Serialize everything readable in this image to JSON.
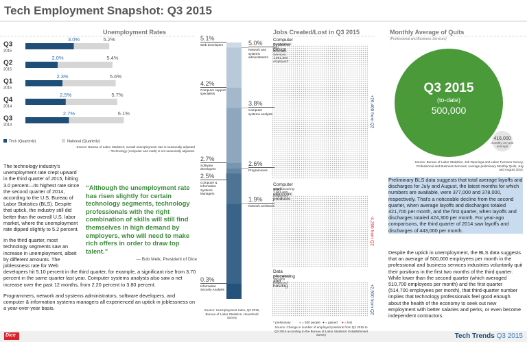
{
  "header": {
    "title": "Tech Employment Snapshot: Q3 2015"
  },
  "unemployment": {
    "title": "Unemployment Rates",
    "tech_color": "#1f4e79",
    "national_color": "#d6d6d6",
    "rows": [
      {
        "quarter": "Q3",
        "year": "2015",
        "tech": {
          "value": 3.0,
          "label": "3.0%"
        },
        "national": {
          "value": 5.2,
          "label": "5.2%"
        }
      },
      {
        "quarter": "Q2",
        "year": "2015",
        "tech": {
          "value": 2.0,
          "label": "2.0%"
        },
        "national": {
          "value": 5.4,
          "label": "5.4%"
        }
      },
      {
        "quarter": "Q1",
        "year": "2015",
        "tech": {
          "value": 2.3,
          "label": "2.3%"
        },
        "national": {
          "value": 5.6,
          "label": "5.6%"
        }
      },
      {
        "quarter": "Q4",
        "year": "2014",
        "tech": {
          "value": 2.5,
          "label": "2.5%"
        },
        "national": {
          "value": 5.7,
          "label": "5.7%"
        }
      },
      {
        "quarter": "Q3",
        "year": "2014",
        "tech": {
          "value": 2.7,
          "label": "2.7%"
        },
        "national": {
          "value": 6.1,
          "label": "6.1%"
        }
      }
    ],
    "legend": [
      "Tech (Quarterly)",
      "National (Quarterly)"
    ],
    "source": "Source: Bureau of Labor Statistics; overall unemployment rate is seasonally adjusted – Technology (computer and math) is not seasonally adjusted."
  },
  "body": {
    "paragraphs": [
      "The technology industry's unemployment rate crept upward in the third quarter of 2015, hitting 3.0 percent—its highest rate since the second quarter of 2014, according to the U.S. Bureau of Labor Statistics (BLS). Despite that uptick, the industry still did better than the overall U.S. labor market, where the unemployment rate dipped slightly to 5.2 percent.",
      "In the third quarter, most technology segments saw an increase in unemployment, albeit by different amounts. The joblessness rate for Web developers hit 5.10 percent in the third quarter, for example, a significant rise from 3.70 percent in the same quarter last year. Computer systems analysts also saw a net increase over the past 12 months, from 2.20 percent to 3.80 percent.",
      "Programmers, network and systems administrators, software developers, and computer & information systems managers all experienced an uptick in joblessness on a year-over-year basis."
    ],
    "quote": "“Although the unemployment rate has risen slightly for certain technology segments, technology professionals with the right combination of skills will still find themselves in high demand by employers, who will need to make rich offers in order to draw top talent.”",
    "attribution": "— Bob Melk, President of Dice"
  },
  "occupations": {
    "items": [
      {
        "name": "Web developers",
        "rate": {
          "value": 5.1,
          "label": "5.1%"
        }
      },
      {
        "name": "Network and systems administrators",
        "rate": {
          "value": 5.0,
          "label": "5.0%"
        }
      },
      {
        "name": "Computer support specialists",
        "rate": {
          "value": 4.2,
          "label": "4.2%"
        }
      },
      {
        "name": "Computer systems analysts",
        "rate": {
          "value": 3.8,
          "label": "3.8%"
        }
      },
      {
        "name": "Software developers",
        "rate": {
          "value": 2.7,
          "label": "2.7%"
        }
      },
      {
        "name": "Programmers",
        "rate": {
          "value": 2.6,
          "label": "2.6%"
        }
      },
      {
        "name": "Computer & Information Systems Managers",
        "rate": {
          "value": 2.5,
          "label": "2.5%"
        }
      },
      {
        "name": "Network architects",
        "rate": {
          "value": 1.9,
          "label": "1.9%"
        }
      },
      {
        "name": "Information Security Analysts",
        "rate": {
          "value": 0.3,
          "label": "0.3%"
        }
      }
    ],
    "source": "Source: Unemployment rates, Q3 2015, Bureau of Labor Statistics, Household Survey"
  },
  "jobs": {
    "title": "Jobs Created/Lost in Q3 2015",
    "panels": [
      {
        "name": "Computer systems design",
        "sector": "Professional and Business Services: 1,891,800 employed*",
        "change": "+26,400 from Q2"
      },
      {
        "name": "Computer and electronic products",
        "sector": "Manufacturing: 1,051,500 employed*",
        "change": "-4,200 from Q2"
      },
      {
        "name": "Data processing and hosting",
        "sector": "Information: 300,000 employed*",
        "change": "+2,900 from Q2"
      }
    ],
    "legend": [
      "* preliminary",
      "= 500 people",
      "= gained",
      "= lost"
    ],
    "source": "Source: Change in number of employed positions from Q2 2015 to Q3 2015 according to the Bureau of Labor Statistics' Establishment Survey"
  },
  "quits": {
    "title": "Monthly Average of Quits",
    "subtitle": "(Professional and Business Services)",
    "period": "Q3 2015",
    "period_note": "(to-date)",
    "value": "500,000",
    "average": "416,000",
    "average_label": "monthly 10-year average",
    "source": "Source: Bureau of Labor Statistics, Job Openings and Labor Turnover Survey, Professional and Business Services; Average preliminary Monthly Quits, July and August 2015.",
    "highlight": "Preliminary BLS data suggests that total average layoffs and discharges for July and August, the latest months for which numbers are available, were 377,000 and 378,000, respectively. That's a noticeable decline from the second quarter, when average layoffs and discharges totaled 421,700 per month, and the first quarter, when layoffs and discharges totaled 424,300 per month. For year-ago comparisons, the third quarter of 2014 saw layoffs and discharges of 443,000 per month.",
    "body": "Despite the uptick in unemployment, the BLS data suggests that an average of 500,000 employees per month in the professional and business services industries voluntarily quit their positions in the first two months of the third quarter. While lower than the second quarter (which averaged 510,700 employees per month) and the first quarter (514,700 employees per month), that third-quarter number implies that technology professionals feel good enough about the health of the economy to seek out new employment with better salaries and perks, or even become independent contractors."
  },
  "footer": {
    "logo": "Dice",
    "brand": "Tech Trends",
    "issue": "Q3 2015"
  }
}
